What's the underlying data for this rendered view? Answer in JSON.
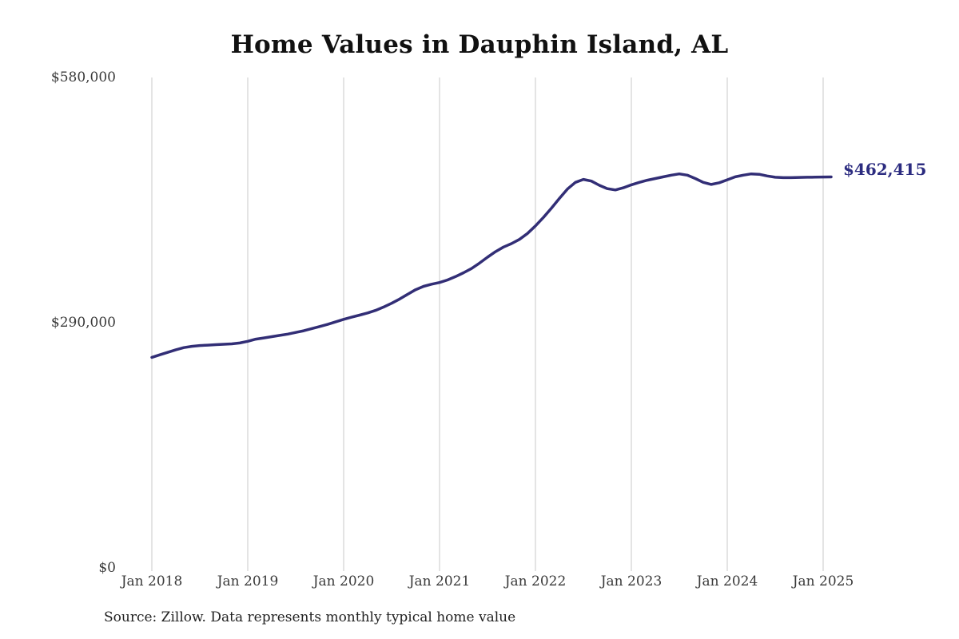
{
  "title": "Home Values in Dauphin Island, AL",
  "annotation": {
    "latest_value_label": "$462,415"
  },
  "source_note": "Source: Zillow. Data represents monthly typical home value",
  "colors": {
    "background": "#ffffff",
    "line": "#322e76",
    "annotation": "#2c2c80",
    "gridline": "#c9c9c9",
    "axis_text": "#3a3a3a",
    "title_text": "#111111"
  },
  "chart_data": {
    "type": "line",
    "title": "Home Values in Dauphin Island, AL",
    "xlabel": "",
    "ylabel": "",
    "ylim": [
      0,
      580000
    ],
    "y_tick_labels": [
      "$0",
      "$290,000",
      "$580,000"
    ],
    "y_tick_values": [
      0,
      290000,
      580000
    ],
    "x_tick_labels": [
      "Jan 2018",
      "Jan 2019",
      "Jan 2020",
      "Jan 2021",
      "Jan 2022",
      "Jan 2023",
      "Jan 2024",
      "Jan 2025"
    ],
    "x_start": "2018-01",
    "x_interval": "monthly",
    "grid": "vertical-only",
    "legend": "none",
    "latest_value": 462415,
    "series": [
      {
        "name": "Monthly typical home value",
        "values": [
          249000,
          252000,
          255000,
          258000,
          260500,
          262000,
          263000,
          263500,
          264000,
          264500,
          265000,
          266000,
          268000,
          270500,
          272000,
          273500,
          275000,
          276500,
          278500,
          280500,
          283000,
          285500,
          288000,
          291000,
          294000,
          296500,
          299000,
          301500,
          304500,
          308500,
          313000,
          318000,
          323500,
          329000,
          333000,
          335500,
          337500,
          340500,
          344500,
          349000,
          354000,
          360500,
          367500,
          374000,
          379500,
          383500,
          388500,
          395500,
          404500,
          414500,
          425500,
          437000,
          448000,
          456000,
          459500,
          457500,
          452500,
          448500,
          447000,
          449500,
          453000,
          456000,
          458500,
          460500,
          462500,
          464500,
          466000,
          464500,
          460500,
          456000,
          453500,
          455500,
          459000,
          462500,
          464500,
          466000,
          465500,
          463500,
          462000,
          461500,
          461500,
          461800,
          462000,
          462100,
          462300,
          462415
        ]
      }
    ]
  }
}
